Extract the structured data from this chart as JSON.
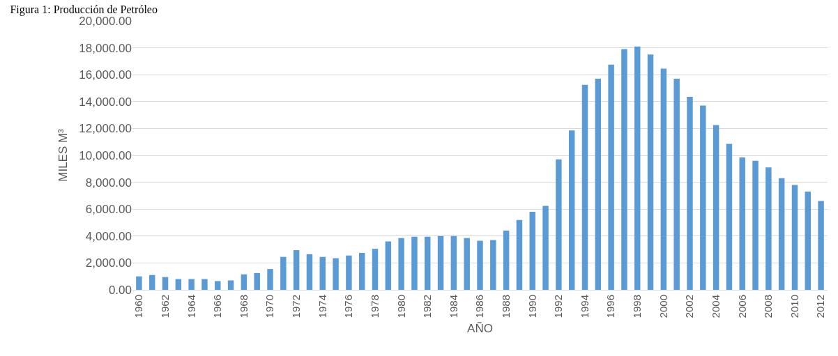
{
  "chart_data": {
    "type": "bar",
    "title": "Figura 1: Producción de Petróleo",
    "xlabel": "AÑO",
    "ylabel": "MILES M³",
    "categories": [
      "1960",
      null,
      "1962",
      null,
      "1964",
      null,
      "1966",
      null,
      "1968",
      null,
      "1970",
      null,
      "1972",
      null,
      "1974",
      null,
      "1976",
      null,
      "1978",
      null,
      "1980",
      null,
      "1982",
      null,
      "1984",
      null,
      "1986",
      null,
      "1988",
      null,
      "1990",
      null,
      "1992",
      null,
      "1994",
      null,
      "1996",
      null,
      "1998",
      null,
      "2000",
      null,
      "2002",
      null,
      "2004",
      null,
      "2006",
      null,
      "2008",
      null,
      "2010",
      null,
      "2012"
    ],
    "values": [
      1000,
      1100,
      950,
      800,
      800,
      800,
      650,
      700,
      1150,
      1250,
      1550,
      2450,
      2950,
      2650,
      2450,
      2350,
      2550,
      2750,
      3050,
      3600,
      3850,
      3950,
      3950,
      4000,
      4000,
      3850,
      3650,
      3700,
      4400,
      5200,
      5800,
      6250,
      9700,
      11850,
      15250,
      15700,
      16750,
      17900,
      18100,
      17500,
      16450,
      15700,
      14350,
      13700,
      12250,
      10850,
      9850,
      9600,
      9100,
      8300,
      7800,
      7300,
      6600
    ],
    "color": "#5b9bd5",
    "ylim": [
      0,
      20000
    ],
    "yticks": [
      {
        "value": 0,
        "label": "0.00"
      },
      {
        "value": 2000,
        "label": "2,000.00"
      },
      {
        "value": 4000,
        "label": "4,000.00"
      },
      {
        "value": 6000,
        "label": "6,000.00"
      },
      {
        "value": 8000,
        "label": "8,000.00"
      },
      {
        "value": 10000,
        "label": "10,000.00"
      },
      {
        "value": 12000,
        "label": "12,000.00"
      },
      {
        "value": 14000,
        "label": "14,000.00"
      },
      {
        "value": 16000,
        "label": "16,000.00"
      },
      {
        "value": 18000,
        "label": "18,000.00"
      },
      {
        "value": 20000,
        "label": "20,000.00"
      }
    ],
    "grid": "y"
  }
}
